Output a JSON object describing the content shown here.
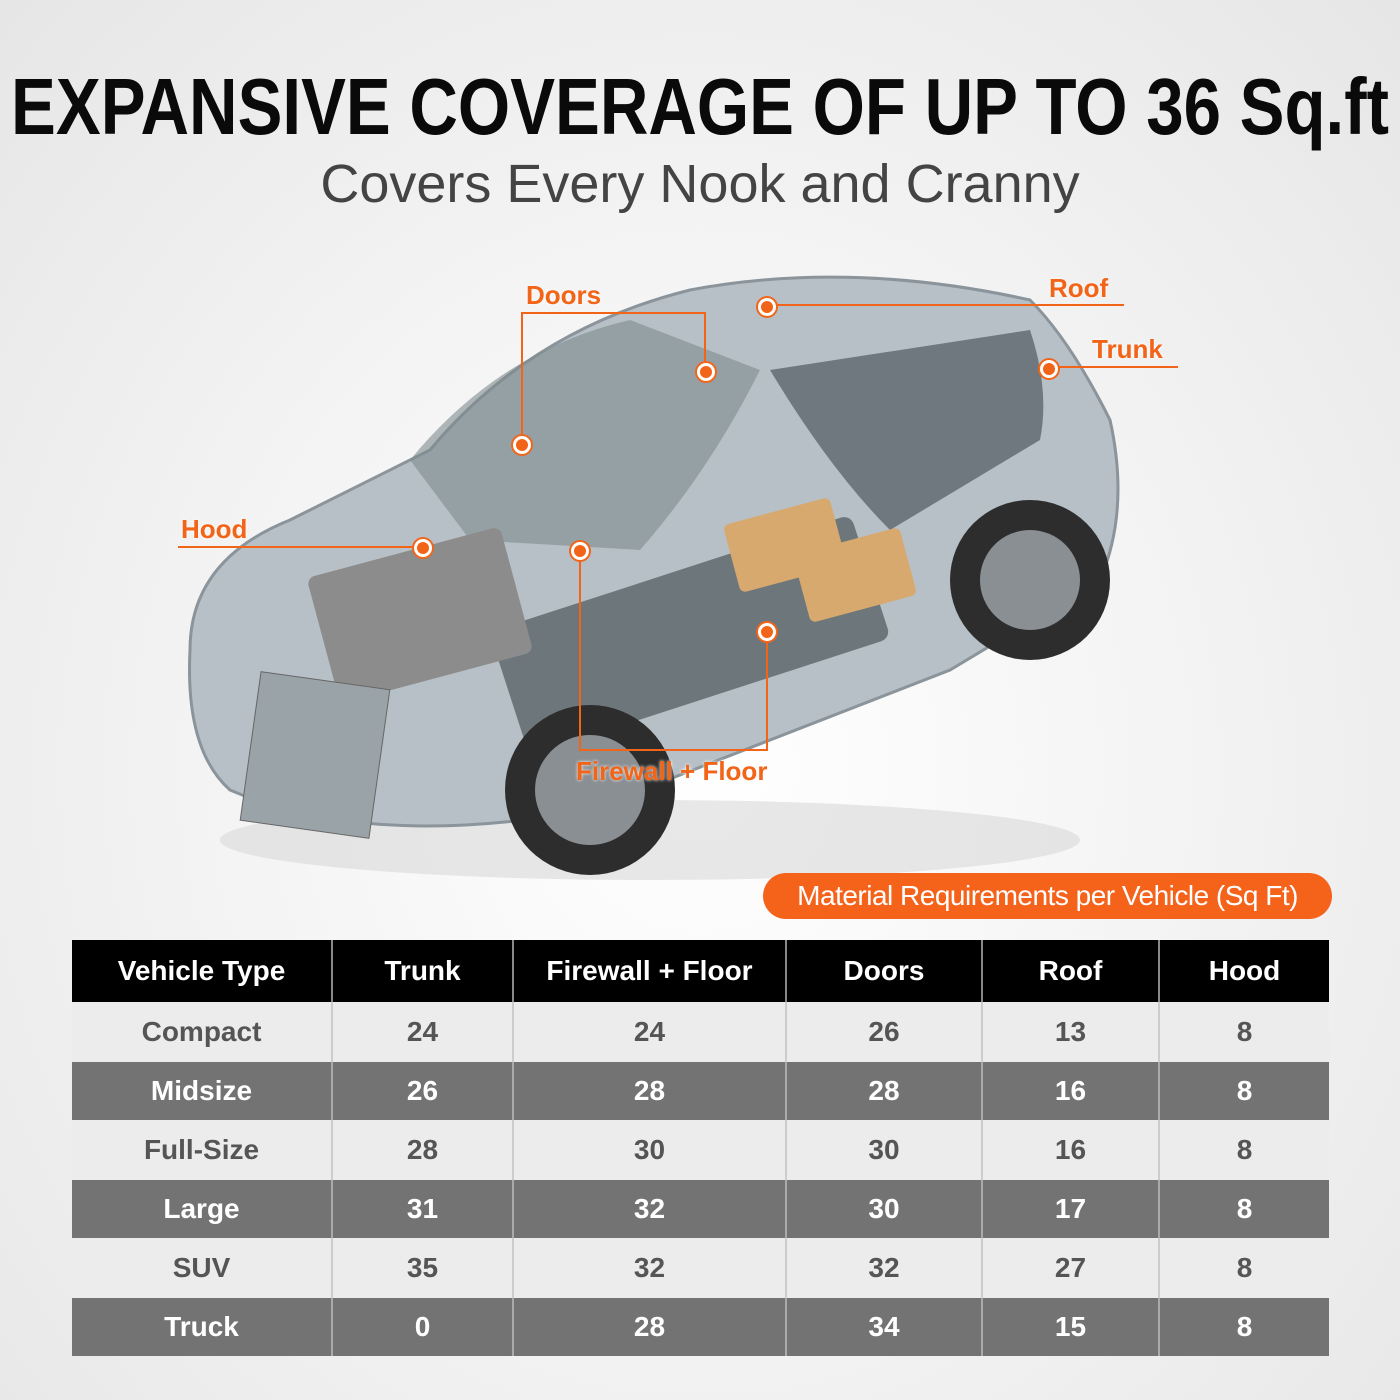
{
  "header": {
    "title": "EXPANSIVE COVERAGE OF UP TO 36 Sq.ft",
    "subtitle": "Covers Every Nook and Cranny"
  },
  "callouts": {
    "doors": "Doors",
    "roof": "Roof",
    "trunk": "Trunk",
    "hood": "Hood",
    "firewall_floor": "Firewall + Floor"
  },
  "colors": {
    "accent": "#f26418",
    "header_bg": "#000000",
    "dark_row": "#737373",
    "light_row": "#ececec"
  },
  "table": {
    "caption": "Material Requirements per Vehicle (Sq Ft)",
    "columns": [
      "Vehicle Type",
      "Trunk",
      "Firewall + Floor",
      "Doors",
      "Roof",
      "Hood"
    ],
    "rows": [
      [
        "Compact",
        "24",
        "24",
        "26",
        "13",
        "8"
      ],
      [
        "Midsize",
        "26",
        "28",
        "28",
        "16",
        "8"
      ],
      [
        "Full-Size",
        "28",
        "30",
        "30",
        "16",
        "8"
      ],
      [
        "Large",
        "31",
        "32",
        "30",
        "17",
        "8"
      ],
      [
        "SUV",
        "35",
        "32",
        "32",
        "27",
        "8"
      ],
      [
        "Truck",
        "0",
        "28",
        "34",
        "15",
        "8"
      ]
    ]
  }
}
